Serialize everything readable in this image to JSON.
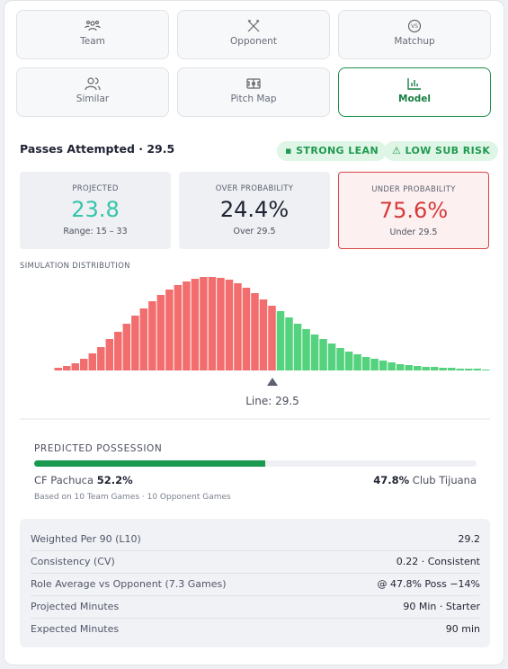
{
  "tabs": [
    "Team",
    "Opponent",
    "Matchup",
    "Similar",
    "Pitch Map",
    "Model"
  ],
  "header": {
    "title": "Passes Attempted · 29.5",
    "badges": [
      "STRONG LEAN",
      "LOW SUB RISK"
    ]
  },
  "stats": [
    {
      "label": "PROJECTED",
      "value": "23.8",
      "sub": "Range: 15 – 33"
    },
    {
      "label": "OVER PROBABILITY",
      "value": "24.4%",
      "sub": "Over 29.5"
    },
    {
      "label": "UNDER PROBABILITY",
      "value": "75.6%",
      "sub": "Under 29.5"
    }
  ],
  "chart_data": {
    "type": "histogram",
    "title": "SIMULATION DISTRIBUTION",
    "line_label": "Line: 29.5",
    "series": [
      {
        "color": "#f26d6d",
        "values": [
          3,
          5,
          8,
          13,
          19,
          26,
          35,
          43,
          52,
          61,
          69,
          77,
          84,
          90,
          95,
          99,
          102,
          104,
          104,
          103,
          101,
          97,
          92,
          86,
          79,
          72
        ]
      },
      {
        "color": "#55d27e",
        "values": [
          66,
          59,
          52,
          46,
          40,
          35,
          30,
          25,
          21,
          18,
          15,
          13,
          11,
          9,
          7,
          6,
          5,
          4,
          4,
          3,
          3,
          2,
          2,
          2,
          1
        ]
      }
    ]
  },
  "possession": {
    "title": "PREDICTED POSSESSION",
    "home": "CF Pachuca",
    "home_pct": 52.2,
    "home_pct_label": "52.2%",
    "away": "Club Tijuana",
    "away_pct": 47.8,
    "away_pct_label": "47.8%",
    "note": "Based on 10 Team Games · 10 Opponent Games"
  },
  "table": {
    "rows": [
      [
        "Weighted Per 90 (L10)",
        "29.2"
      ],
      [
        "Consistency (CV)",
        "0.22 · Consistent"
      ],
      [
        "Role Average vs Opponent (7.3 Games)",
        "@ 47.8% Poss −14%"
      ],
      [
        "Projected Minutes",
        "90 Min · Starter"
      ],
      [
        "Expected Minutes",
        "90 min"
      ]
    ]
  }
}
